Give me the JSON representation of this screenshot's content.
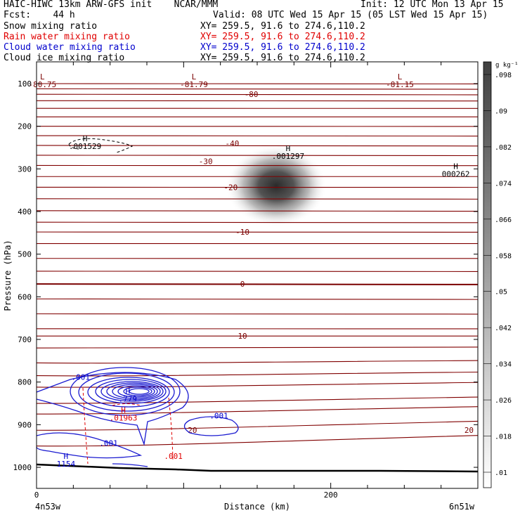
{
  "header": {
    "title_left": "HAIC-HIWC 13km ARW-GFS init    NCAR/MMM",
    "init": "Init: 12 UTC Mon 13 Apr 15",
    "fcst": "Fcst:    44 h",
    "valid": "Valid: 08 UTC Wed 15 Apr 15 (05 LST Wed 15 Apr 15)",
    "fields": [
      {
        "name": "Snow mixing ratio",
        "xy": "XY= 259.5, 91.6 to 274.6,110.2",
        "color": "#000000"
      },
      {
        "name": "Rain water mixing ratio",
        "xy": "XY= 259.5, 91.6 to 274.6,110.2",
        "color": "#e00000"
      },
      {
        "name": "Cloud water mixing ratio",
        "xy": "XY= 259.5, 91.6 to 274.6,110.2",
        "color": "#0000cc"
      },
      {
        "name": "Cloud ice mixing ratio",
        "xy": "XY= 259.5, 91.6 to 274.6,110.2",
        "color": "#000000"
      }
    ]
  },
  "chart_data": {
    "type": "cross-section",
    "xlabel": "Distance (km)",
    "ylabel": "Pressure (hPa)",
    "xlim": [
      0,
      300
    ],
    "ylim": [
      1050,
      50
    ],
    "x_ticks": [
      0,
      200
    ],
    "y_ticks": [
      100,
      200,
      300,
      400,
      500,
      600,
      700,
      800,
      900,
      1000
    ],
    "x_end_labels": {
      "left": "4n53w",
      "right": "6n51w"
    },
    "colorbar": {
      "unit": "g kg⁻¹",
      "ticks": [
        ".01",
        ".018",
        ".026",
        ".034",
        ".042",
        ".05",
        ".058",
        ".066",
        ".074",
        ".082",
        ".09",
        ".098"
      ]
    },
    "temperature_contours": [
      {
        "label": "-80",
        "p": 125,
        "x": 146
      },
      {
        "label": "-40",
        "p": 240,
        "x": 133
      },
      {
        "label": "-30",
        "p": 282,
        "x": 115
      },
      {
        "label": "-20",
        "p": 343,
        "x": 132
      },
      {
        "label": "-10",
        "p": 448,
        "x": 140
      },
      {
        "label": "0",
        "p": 570,
        "x": 140
      },
      {
        "label": "10",
        "p": 692,
        "x": 140
      },
      {
        "label": "20",
        "p": 913,
        "x": 106
      },
      {
        "label": "20",
        "p": 913,
        "x": 294
      }
    ],
    "extrema": [
      {
        "type": "L",
        "value": "-80.75",
        "x": 4,
        "p": 90,
        "color": "#7a0000"
      },
      {
        "type": "L",
        "value": "-81.79",
        "x": 107,
        "p": 90,
        "color": "#7a0000"
      },
      {
        "type": "L",
        "value": "-81.15",
        "x": 247,
        "p": 90,
        "color": "#7a0000"
      },
      {
        "type": "H",
        "value": ".001529",
        "x": 33,
        "p": 235,
        "color": "#000000"
      },
      {
        "type": "H",
        "value": ".001297",
        "x": 171,
        "p": 258,
        "color": "#000000"
      },
      {
        "type": "H",
        "value": "000262",
        "x": 285,
        "p": 300,
        "color": "#000000"
      },
      {
        "type": "H",
        "value": ".779",
        "x": 62,
        "p": 828,
        "color": "#0000cc"
      },
      {
        "type": "H",
        "value": ".01963",
        "x": 59,
        "p": 872,
        "color": "#e00000"
      },
      {
        "type": "H",
        "value": "1154",
        "x": 20,
        "p": 980,
        "color": "#0000cc"
      }
    ],
    "contour_labels": [
      {
        "value": ".001",
        "x": 30,
        "p": 795,
        "color": "#0000cc"
      },
      {
        "value": ".001",
        "x": 124,
        "p": 885,
        "color": "#0000cc"
      },
      {
        "value": ".001",
        "x": 49,
        "p": 950,
        "color": "#0000cc"
      },
      {
        "value": ".001",
        "x": 93,
        "p": 980,
        "color": "#e00000"
      }
    ],
    "ice_max": {
      "x": 161,
      "p": 340,
      "value": 0.09
    }
  }
}
